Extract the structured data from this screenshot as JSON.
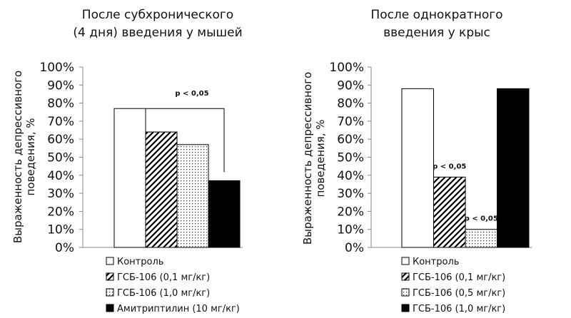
{
  "chart_data": [
    {
      "type": "bar",
      "title_lines": [
        "После субхронического",
        "(4 дня) введения у мышей"
      ],
      "ylabel_lines": [
        "Выраженность депрессивного",
        "поведения, %"
      ],
      "ylim": [
        0,
        100
      ],
      "ytick_labels": [
        "0%",
        "10%",
        "20%",
        "30%",
        "40%",
        "50%",
        "60%",
        "70%",
        "80%",
        "90%",
        "100%"
      ],
      "categories": [
        "Контроль",
        "ГСБ-106 (0,1 мг/кг)",
        "ГСБ-106 (1,0 мг/кг)",
        "Амитриптилин (10 мг/кг)"
      ],
      "values": [
        77,
        64,
        57,
        37
      ],
      "fills": [
        "white",
        "hatch",
        "dots",
        "black"
      ],
      "annotations": [
        {
          "text": "p < 0,05",
          "type": "bracket",
          "from": 0,
          "to": 3
        }
      ]
    },
    {
      "type": "bar",
      "title_lines": [
        "После однократного",
        "введения у крыс"
      ],
      "ylabel_lines": [
        "Выраженность депрессивного",
        "поведения, %"
      ],
      "ylim": [
        0,
        100
      ],
      "ytick_labels": [
        "0%",
        "10%",
        "20%",
        "30%",
        "40%",
        "50%",
        "60%",
        "70%",
        "80%",
        "90%",
        "100%"
      ],
      "categories": [
        "Контроль",
        "ГСБ-106 (0,1 мг/кг)",
        "ГСБ-106 (0,5 мг/кг)",
        "ГСБ-106 (1,0 мг/кг)"
      ],
      "values": [
        88,
        39,
        10,
        88
      ],
      "fills": [
        "white",
        "hatch",
        "dots",
        "black"
      ],
      "annotations": [
        {
          "text": "p < 0,05",
          "type": "label",
          "bar": 1
        },
        {
          "text": "p < 0,05",
          "type": "label",
          "bar": 2
        }
      ]
    }
  ]
}
